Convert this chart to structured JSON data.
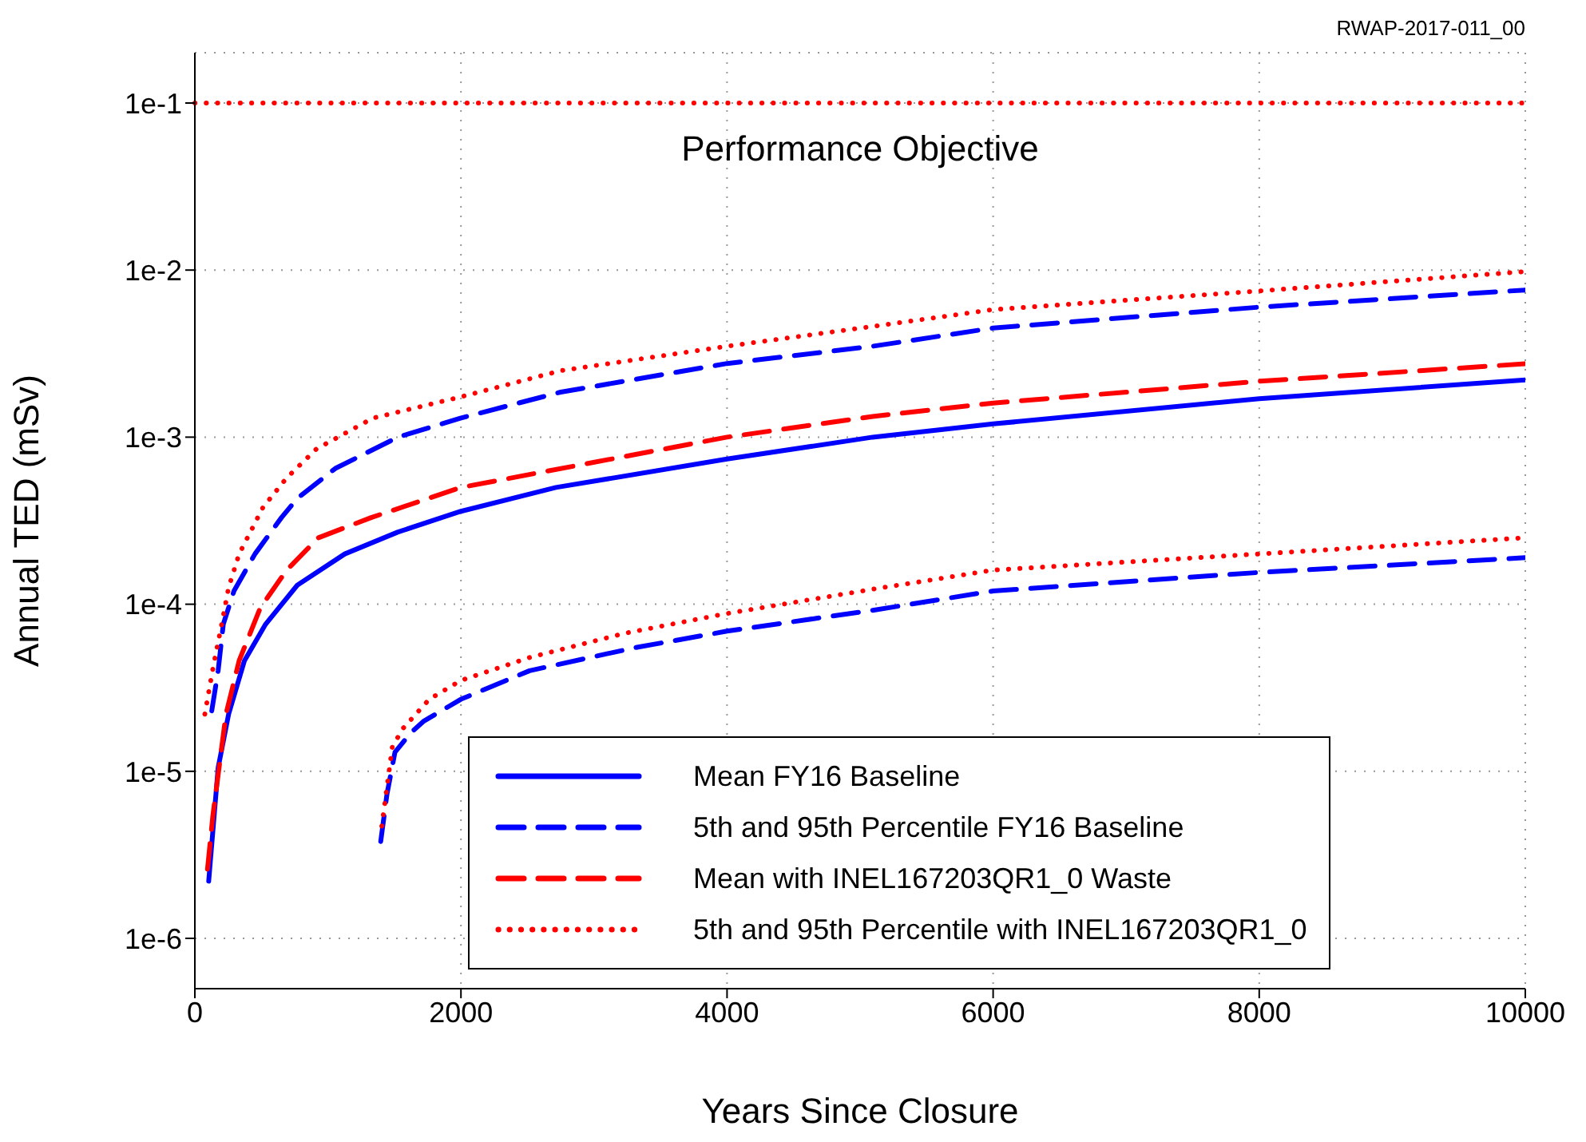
{
  "chart_data": {
    "type": "line",
    "xlabel": "Years Since Closure",
    "ylabel": "Annual TED (mSv)",
    "annotations": [
      "RWAP-2017-011_00"
    ],
    "log": "y",
    "grid": true,
    "legend": "bottom right",
    "xlim": [
      0,
      10000
    ],
    "xticks": [
      0,
      2000,
      4000,
      6000,
      8000,
      10000
    ],
    "ylim": [
      5e-07,
      0.2
    ],
    "yticks": [
      {
        "value": 1e-06,
        "label": "1e-6"
      },
      {
        "value": 1e-05,
        "label": "1e-5"
      },
      {
        "value": 0.0001,
        "label": "1e-4"
      },
      {
        "value": 0.001,
        "label": "1e-3"
      },
      {
        "value": 0.01,
        "label": "1e-2"
      },
      {
        "value": 0.1,
        "label": "1e-1"
      }
    ],
    "ref_lines": [
      {
        "axis": "y",
        "value": 0.1,
        "label": "Performance Objective",
        "color": "#ff0000",
        "line_style": "dotted"
      }
    ],
    "series": [
      {
        "name": "Mean FY16 Baseline",
        "color": "#0000ff",
        "line_style": "solid",
        "x": [
          104,
          175,
          254,
          373,
          532,
          770,
          1127,
          1524,
          2000,
          2714,
          4000,
          5095,
          6000,
          8000,
          10000
        ],
        "values": [
          2.2e-06,
          1.05e-05,
          2.2e-05,
          4.6e-05,
          7.6e-05,
          0.00013,
          0.0002,
          0.00027,
          0.00036,
          0.0005,
          0.00074,
          0.001,
          0.0012,
          0.0017,
          0.0022
        ]
      },
      {
        "name": "5th and 95th Percentile FY16 Baseline",
        "color": "#0000ff",
        "line_style": "dashed",
        "x": [
          127,
          175,
          214,
          294,
          452,
          651,
          770,
          1056,
          1526,
          1996,
          2750,
          4000,
          5095,
          6000,
          8000,
          10000
        ],
        "values": [
          2.3e-05,
          4e-05,
          7.6e-05,
          0.00012,
          0.0002,
          0.00033,
          0.00043,
          0.00065,
          0.001,
          0.0013,
          0.00186,
          0.00276,
          0.0035,
          0.0045,
          0.006,
          0.0076
        ]
      },
      {
        "color": "#0000ff",
        "line_style": "dashed",
        "x": [
          1397,
          1444,
          1504,
          1623,
          1722,
          2000,
          2516,
          3310,
          4000,
          5095,
          6000,
          8000,
          10000
        ],
        "values": [
          3.8e-06,
          7.3e-06,
          1.3e-05,
          1.7e-05,
          2e-05,
          2.7e-05,
          4e-05,
          5.5e-05,
          6.9e-05,
          9.2e-05,
          0.00012,
          0.000155,
          0.00019
        ]
      },
      {
        "name": "Mean with INEL167203QR1_0 Waste",
        "color": "#ff0000",
        "line_style": "dashed",
        "x": [
          95,
          135,
          234,
          333,
          492,
          690,
          929,
          1325,
          2000,
          4000,
          5095,
          6000,
          8000,
          10000
        ],
        "values": [
          2.6e-06,
          5.4e-06,
          2.2e-05,
          4.6e-05,
          9.5e-05,
          0.00016,
          0.00025,
          0.00033,
          0.0005,
          0.001,
          0.00133,
          0.0016,
          0.00216,
          0.00275
        ]
      },
      {
        "name": "5th and 95th Percentile with INEL167203QR1_0",
        "color": "#ff0000",
        "line_style": "dotted",
        "x": [
          75,
          135,
          206,
          254,
          333,
          512,
          690,
          914,
          1338,
          1996,
          2750,
          4000,
          5095,
          6000,
          8000,
          10000
        ],
        "values": [
          2.2e-05,
          4.1e-05,
          7.9e-05,
          0.000126,
          0.0002,
          0.00038,
          0.00057,
          0.00085,
          0.0013,
          0.00174,
          0.0025,
          0.0035,
          0.0046,
          0.0058,
          0.0075,
          0.0098
        ]
      },
      {
        "color": "#ff0000",
        "line_style": "dotted",
        "x": [
          1405,
          1437,
          1484,
          1563,
          1762,
          2000,
          2516,
          3230,
          4000,
          5095,
          6000,
          8000,
          10000
        ],
        "values": [
          4.7e-06,
          7.3e-06,
          1.4e-05,
          1.8e-05,
          2.7e-05,
          3.5e-05,
          4.8e-05,
          6.7e-05,
          8.8e-05,
          0.000123,
          0.00016,
          0.0002,
          0.00025
        ]
      }
    ]
  }
}
